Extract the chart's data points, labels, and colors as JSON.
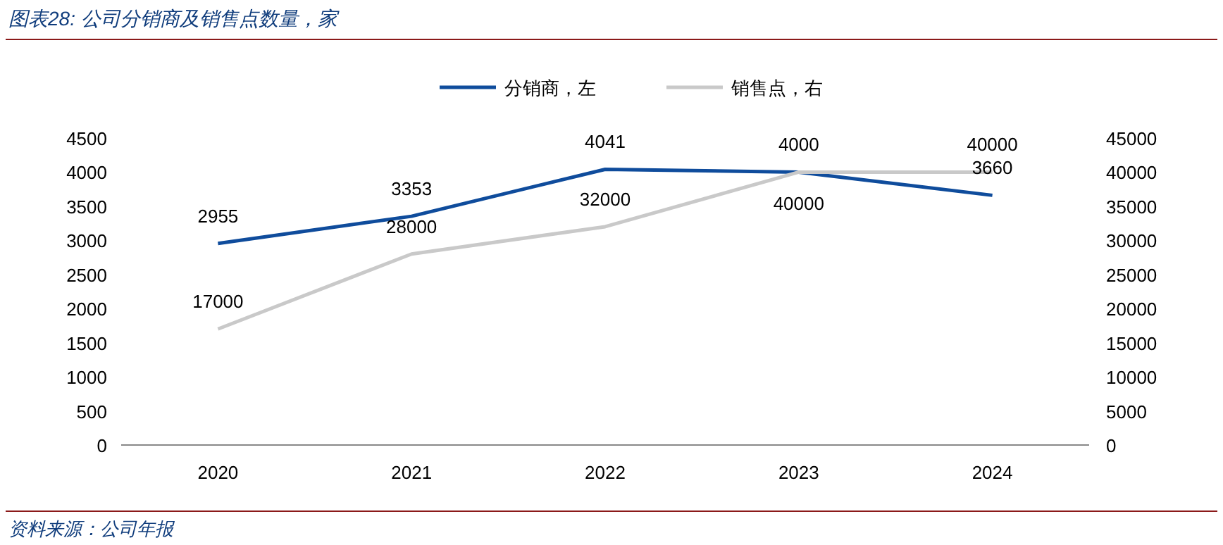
{
  "chart_data": {
    "type": "line",
    "title": "图表28: 公司分销商及销售点数量，家",
    "categories": [
      "2020",
      "2021",
      "2022",
      "2023",
      "2024"
    ],
    "series": [
      {
        "name": "分销商，左",
        "color": "#0f4c9c",
        "values": [
          2955,
          3353,
          4041,
          4000,
          3660
        ]
      },
      {
        "name": "销售点，右",
        "color": "#c9c9c9",
        "values": [
          17000,
          28000,
          32000,
          40000,
          40000
        ],
        "axis": "y2"
      }
    ],
    "ylim": [
      0,
      4500
    ],
    "yticks": [
      0,
      500,
      1000,
      1500,
      2000,
      2500,
      3000,
      3500,
      4000,
      4500
    ],
    "y2lim": [
      0,
      45000
    ],
    "y2ticks": [
      0,
      5000,
      10000,
      15000,
      20000,
      25000,
      30000,
      35000,
      40000,
      45000
    ],
    "data_labels": true,
    "legend": "top",
    "grid": false,
    "marker": "none",
    "line_style": "solid",
    "annotations": [
      "资料来源：公司年报"
    ]
  }
}
